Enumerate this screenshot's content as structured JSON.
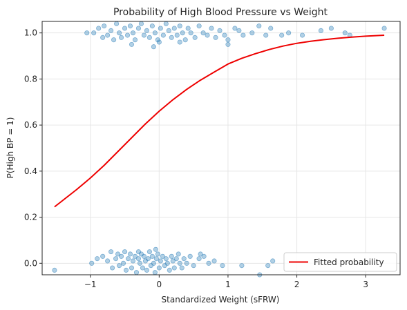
{
  "chart_data": {
    "type": "scatter",
    "title": "Probability of High Blood Pressure vs Weight",
    "xlabel": "Standardized Weight (sFRW)",
    "ylabel": "P(High BP = 1)",
    "xlim": [
      -1.7,
      3.5
    ],
    "ylim": [
      -0.05,
      1.05
    ],
    "xticks": [
      {
        "value": -1,
        "label": "−1"
      },
      {
        "value": 0,
        "label": "0"
      },
      {
        "value": 1,
        "label": "1"
      },
      {
        "value": 2,
        "label": "2"
      },
      {
        "value": 3,
        "label": "3"
      }
    ],
    "yticks": [
      {
        "value": 0.0,
        "label": "0.0"
      },
      {
        "value": 0.2,
        "label": "0.2"
      },
      {
        "value": 0.4,
        "label": "0.4"
      },
      {
        "value": 0.6,
        "label": "0.6"
      },
      {
        "value": 0.8,
        "label": "0.8"
      },
      {
        "value": 1.0,
        "label": "1.0"
      }
    ],
    "grid": true,
    "legend": {
      "placement": "bottom-right",
      "entries": [
        "Fitted probability"
      ]
    },
    "series": [
      {
        "type": "scatter",
        "color": "#1f77b4",
        "opacity": 0.35,
        "points": [
          [
            -1.52,
            -0.03
          ],
          [
            -0.98,
            0.0
          ],
          [
            -0.82,
            0.03
          ],
          [
            -0.75,
            0.01
          ],
          [
            -0.7,
            0.05
          ],
          [
            -0.68,
            -0.02
          ],
          [
            -0.63,
            0.02
          ],
          [
            -0.6,
            0.04
          ],
          [
            -0.58,
            -0.01
          ],
          [
            -0.55,
            0.03
          ],
          [
            -0.52,
            0.0
          ],
          [
            -0.5,
            0.05
          ],
          [
            -0.48,
            -0.03
          ],
          [
            -0.45,
            0.02
          ],
          [
            -0.42,
            0.04
          ],
          [
            -0.4,
            -0.02
          ],
          [
            -0.38,
            0.01
          ],
          [
            -0.35,
            0.03
          ],
          [
            -0.33,
            -0.04
          ],
          [
            -0.3,
            0.02
          ],
          [
            -0.28,
            0.0
          ],
          [
            -0.26,
            0.04
          ],
          [
            -0.24,
            -0.02
          ],
          [
            -0.22,
            0.03
          ],
          [
            -0.2,
            0.01
          ],
          [
            -0.18,
            -0.03
          ],
          [
            -0.16,
            0.02
          ],
          [
            -0.14,
            0.05
          ],
          [
            -0.12,
            -0.01
          ],
          [
            -0.1,
            0.03
          ],
          [
            -0.08,
            0.0
          ],
          [
            -0.06,
            -0.04
          ],
          [
            -0.04,
            0.02
          ],
          [
            -0.02,
            0.04
          ],
          [
            0.0,
            -0.02
          ],
          [
            0.02,
            0.01
          ],
          [
            0.05,
            0.03
          ],
          [
            0.08,
            -0.01
          ],
          [
            0.1,
            0.02
          ],
          [
            0.12,
            0.0
          ],
          [
            0.15,
            -0.03
          ],
          [
            0.18,
            0.03
          ],
          [
            0.2,
            0.01
          ],
          [
            0.22,
            -0.02
          ],
          [
            0.25,
            0.02
          ],
          [
            0.28,
            0.04
          ],
          [
            0.3,
            0.0
          ],
          [
            0.33,
            -0.02
          ],
          [
            0.36,
            0.02
          ],
          [
            0.4,
            0.0
          ],
          [
            0.45,
            0.03
          ],
          [
            0.5,
            -0.01
          ],
          [
            0.58,
            0.02
          ],
          [
            0.65,
            0.03
          ],
          [
            0.72,
            0.0
          ],
          [
            0.8,
            0.01
          ],
          [
            0.92,
            -0.01
          ],
          [
            1.2,
            -0.01
          ],
          [
            1.46,
            -0.05
          ],
          [
            1.58,
            -0.01
          ],
          [
            1.65,
            0.01
          ],
          [
            -0.3,
            0.05
          ],
          [
            -0.05,
            0.06
          ],
          [
            0.6,
            0.04
          ],
          [
            -0.9,
            0.02
          ],
          [
            -1.05,
            1.0
          ],
          [
            -0.95,
            1.0
          ],
          [
            -0.88,
            1.02
          ],
          [
            -0.82,
            0.98
          ],
          [
            -0.8,
            1.03
          ],
          [
            -0.75,
            0.99
          ],
          [
            -0.7,
            1.01
          ],
          [
            -0.66,
            0.97
          ],
          [
            -0.62,
            1.04
          ],
          [
            -0.58,
            1.0
          ],
          [
            -0.55,
            0.98
          ],
          [
            -0.5,
            1.02
          ],
          [
            -0.46,
            0.99
          ],
          [
            -0.42,
            1.03
          ],
          [
            -0.38,
            1.0
          ],
          [
            -0.35,
            0.97
          ],
          [
            -0.3,
            1.02
          ],
          [
            -0.26,
            1.04
          ],
          [
            -0.22,
            0.99
          ],
          [
            -0.18,
            1.01
          ],
          [
            -0.14,
            0.98
          ],
          [
            -0.1,
            1.03
          ],
          [
            -0.06,
            1.0
          ],
          [
            -0.02,
            0.97
          ],
          [
            0.02,
            1.02
          ],
          [
            0.06,
            0.99
          ],
          [
            0.1,
            1.04
          ],
          [
            0.14,
            1.01
          ],
          [
            0.18,
            0.98
          ],
          [
            0.22,
            1.02
          ],
          [
            0.26,
            0.99
          ],
          [
            0.3,
            1.03
          ],
          [
            0.34,
            1.0
          ],
          [
            0.38,
            0.97
          ],
          [
            0.42,
            1.02
          ],
          [
            0.46,
            1.0
          ],
          [
            0.52,
            0.98
          ],
          [
            0.58,
            1.03
          ],
          [
            0.64,
            1.0
          ],
          [
            0.7,
            0.99
          ],
          [
            0.76,
            1.02
          ],
          [
            0.82,
            0.98
          ],
          [
            0.88,
            1.01
          ],
          [
            0.95,
            0.99
          ],
          [
            1.0,
            0.97
          ],
          [
            1.1,
            1.02
          ],
          [
            1.16,
            1.01
          ],
          [
            1.22,
            0.99
          ],
          [
            1.35,
            1.0
          ],
          [
            1.45,
            1.03
          ],
          [
            1.55,
            0.99
          ],
          [
            1.62,
            1.02
          ],
          [
            1.78,
            0.99
          ],
          [
            1.88,
            1.0
          ],
          [
            2.08,
            0.99
          ],
          [
            2.35,
            1.01
          ],
          [
            2.5,
            1.02
          ],
          [
            2.7,
            1.0
          ],
          [
            2.77,
            0.99
          ],
          [
            3.27,
            1.02
          ],
          [
            -0.08,
            0.94
          ],
          [
            0.0,
            0.96
          ],
          [
            -0.4,
            0.95
          ],
          [
            0.3,
            0.96
          ],
          [
            1.0,
            0.95
          ]
        ]
      },
      {
        "type": "line",
        "name": "Fitted probability",
        "color": "#ee0000",
        "x": [
          -1.52,
          -1.2,
          -1.0,
          -0.8,
          -0.6,
          -0.4,
          -0.2,
          0.0,
          0.2,
          0.4,
          0.6,
          0.8,
          1.0,
          1.2,
          1.4,
          1.6,
          1.8,
          2.0,
          2.2,
          2.4,
          2.6,
          2.8,
          3.0,
          3.27
        ],
        "y": [
          0.245,
          0.32,
          0.37,
          0.425,
          0.485,
          0.545,
          0.605,
          0.66,
          0.71,
          0.755,
          0.795,
          0.83,
          0.865,
          0.89,
          0.91,
          0.928,
          0.943,
          0.955,
          0.964,
          0.971,
          0.977,
          0.982,
          0.986,
          0.99
        ]
      }
    ]
  }
}
